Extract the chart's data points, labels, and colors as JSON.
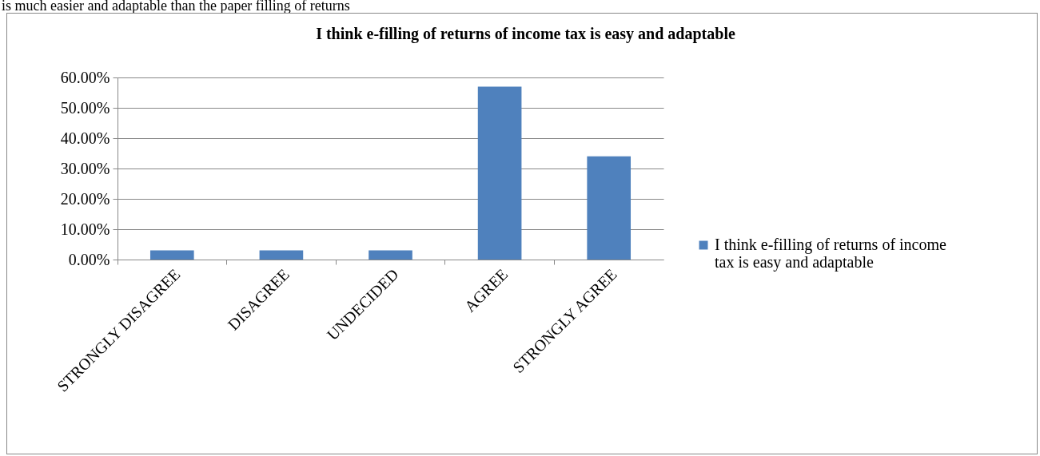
{
  "chart_data": {
    "type": "bar",
    "title": "I think e-filling of returns of income tax is easy and adaptable",
    "annotations": [
      "is much easier and adaptable than the paper filling of returns"
    ],
    "categories": [
      "STRONGLY DISAGREE",
      "DISAGREE",
      "UNDECIDED",
      "AGREE",
      "STRONGLY AGREE"
    ],
    "series": [
      {
        "name": "I think e-filling of returns of income tax is easy and adaptable",
        "color": "#4f81bd",
        "values": [
          3,
          3,
          3,
          57,
          34
        ]
      }
    ],
    "ylim": [
      0,
      60
    ],
    "yticks": [
      {
        "value": 0,
        "label": "0.00%"
      },
      {
        "value": 10,
        "label": "10.00%"
      },
      {
        "value": 20,
        "label": "20.00%"
      },
      {
        "value": 30,
        "label": "30.00%"
      },
      {
        "value": 40,
        "label": "40.00%"
      },
      {
        "value": 50,
        "label": "50.00%"
      },
      {
        "value": 60,
        "label": "60.00%"
      }
    ],
    "grid": "y",
    "legend": "right"
  }
}
